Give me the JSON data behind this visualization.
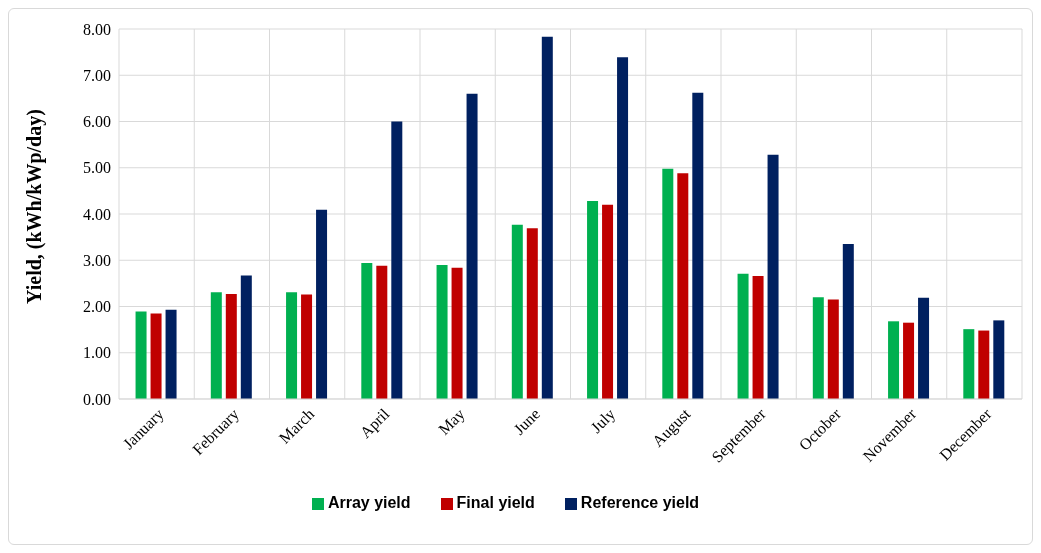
{
  "chart_data": {
    "type": "bar",
    "ylabel": "Yield, (kWh/kWp/day)",
    "categories": [
      "January",
      "February",
      "March",
      "April",
      "May",
      "June",
      "July",
      "August",
      "September",
      "October",
      "November",
      "December"
    ],
    "series": [
      {
        "name": "Array yield",
        "color": "#00b050",
        "values": [
          1.89,
          2.31,
          2.31,
          2.94,
          2.9,
          3.77,
          4.28,
          4.98,
          2.71,
          2.2,
          1.68,
          1.51
        ]
      },
      {
        "name": "Final yield",
        "color": "#c00000",
        "values": [
          1.85,
          2.27,
          2.26,
          2.88,
          2.84,
          3.69,
          4.2,
          4.88,
          2.66,
          2.15,
          1.65,
          1.48
        ]
      },
      {
        "name": "Reference yield",
        "color": "#002060",
        "values": [
          1.93,
          2.67,
          4.09,
          6.0,
          6.6,
          7.83,
          7.39,
          6.62,
          5.28,
          3.35,
          2.19,
          1.7
        ]
      }
    ],
    "ylim": [
      0,
      8
    ],
    "yticks": [
      {
        "value": 0,
        "label": "0.00"
      },
      {
        "value": 1,
        "label": "1.00"
      },
      {
        "value": 2,
        "label": "2.00"
      },
      {
        "value": 3,
        "label": "3.00"
      },
      {
        "value": 4,
        "label": "4.00"
      },
      {
        "value": 5,
        "label": "5.00"
      },
      {
        "value": 6,
        "label": "6.00"
      },
      {
        "value": 7,
        "label": "7.00"
      },
      {
        "value": 8,
        "label": "8.00"
      }
    ],
    "grid": true,
    "legend": "bottom"
  }
}
